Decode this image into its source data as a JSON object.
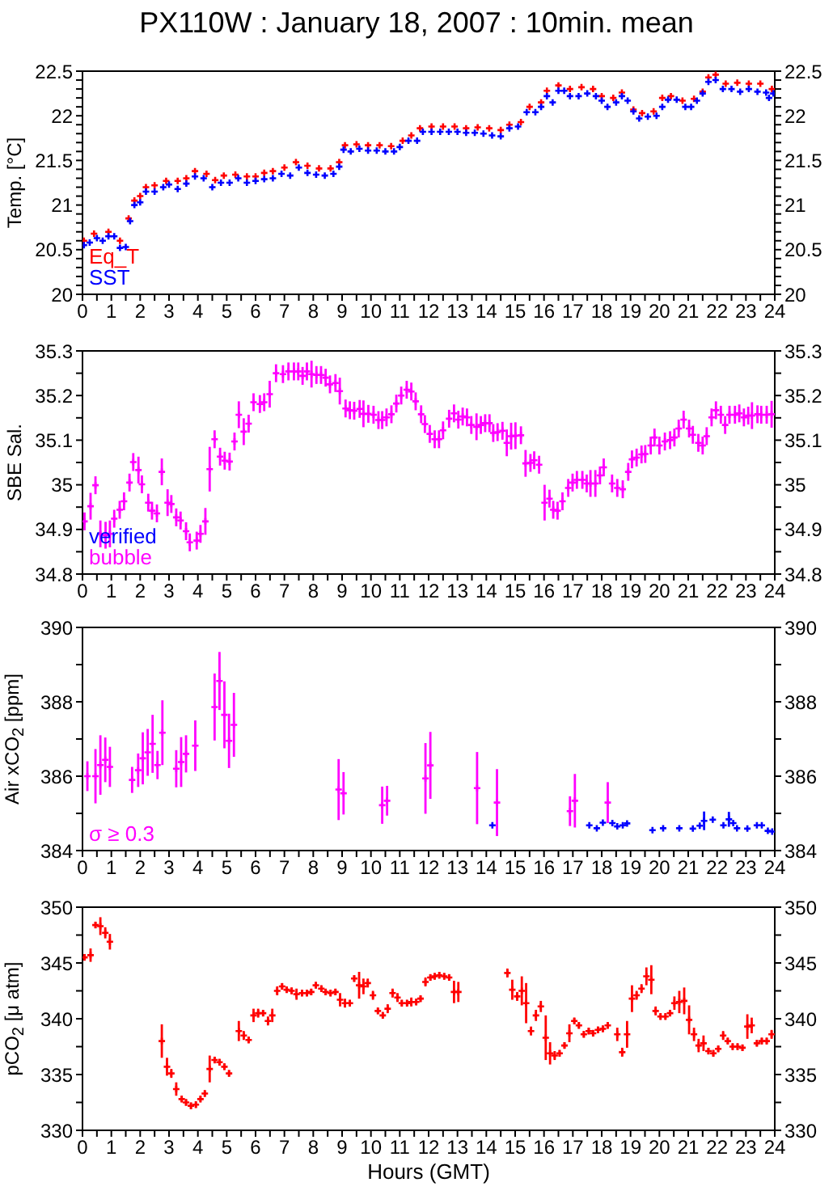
{
  "chart_data": [
    {
      "type": "scatter",
      "title": "PX110W : January 18, 2007 : 10min. mean",
      "ylabel": "Temp. [°C]",
      "marker": "cross",
      "legend": "bottom left",
      "xlim": [
        0,
        24
      ],
      "xticks": [
        0,
        {
          "value": 0.5,
          "label": null
        },
        1,
        {
          "value": 1.5,
          "label": null
        },
        2,
        {
          "value": 2.5,
          "label": null
        },
        3,
        {
          "value": 3.5,
          "label": null
        },
        4,
        {
          "value": 4.5,
          "label": null
        },
        5,
        {
          "value": 5.5,
          "label": null
        },
        6,
        {
          "value": 6.5,
          "label": null
        },
        7,
        {
          "value": 7.5,
          "label": null
        },
        8,
        {
          "value": 8.5,
          "label": null
        },
        9,
        {
          "value": 9.5,
          "label": null
        },
        10,
        {
          "value": 10.5,
          "label": null
        },
        11,
        {
          "value": 11.5,
          "label": null
        },
        12,
        {
          "value": 12.5,
          "label": null
        },
        13,
        {
          "value": 13.5,
          "label": null
        },
        14,
        {
          "value": 14.5,
          "label": null
        },
        15,
        {
          "value": 15.5,
          "label": null
        },
        16,
        {
          "value": 16.5,
          "label": null
        },
        17,
        {
          "value": 17.5,
          "label": null
        },
        18,
        {
          "value": 18.5,
          "label": null
        },
        19,
        {
          "value": 19.5,
          "label": null
        },
        20,
        {
          "value": 20.5,
          "label": null
        },
        21,
        {
          "value": 21.5,
          "label": null
        },
        22,
        {
          "value": 22.5,
          "label": null
        },
        23,
        {
          "value": 23.5,
          "label": null
        },
        24
      ],
      "ylim": [
        20,
        22.5
      ],
      "yticks": [
        20,
        {
          "value": 20.1,
          "label": null
        },
        {
          "value": 20.2,
          "label": null
        },
        {
          "value": 20.3,
          "label": null
        },
        {
          "value": 20.4,
          "label": null
        },
        20.5,
        {
          "value": 20.6,
          "label": null
        },
        {
          "value": 20.7,
          "label": null
        },
        {
          "value": 20.8,
          "label": null
        },
        {
          "value": 20.9,
          "label": null
        },
        21,
        {
          "value": 21.1,
          "label": null
        },
        {
          "value": 21.2,
          "label": null
        },
        {
          "value": 21.3,
          "label": null
        },
        {
          "value": 21.4,
          "label": null
        },
        21.5,
        {
          "value": 21.6,
          "label": null
        },
        {
          "value": 21.7,
          "label": null
        },
        {
          "value": 21.8,
          "label": null
        },
        {
          "value": 21.9,
          "label": null
        },
        22,
        {
          "value": 22.1,
          "label": null
        },
        {
          "value": 22.2,
          "label": null
        },
        {
          "value": 22.3,
          "label": null
        },
        {
          "value": 22.4,
          "label": null
        },
        22.5
      ],
      "y2lim": [
        20,
        22.5
      ],
      "y2ticks": [
        20,
        {
          "value": 20.1,
          "label": null
        },
        {
          "value": 20.2,
          "label": null
        },
        {
          "value": 20.3,
          "label": null
        },
        {
          "value": 20.4,
          "label": null
        },
        20.5,
        {
          "value": 20.6,
          "label": null
        },
        {
          "value": 20.7,
          "label": null
        },
        {
          "value": 20.8,
          "label": null
        },
        {
          "value": 20.9,
          "label": null
        },
        21,
        {
          "value": 21.1,
          "label": null
        },
        {
          "value": 21.2,
          "label": null
        },
        {
          "value": 21.3,
          "label": null
        },
        {
          "value": 21.4,
          "label": null
        },
        21.5,
        {
          "value": 21.6,
          "label": null
        },
        {
          "value": 21.7,
          "label": null
        },
        {
          "value": 21.8,
          "label": null
        },
        {
          "value": 21.9,
          "label": null
        },
        22,
        {
          "value": 22.1,
          "label": null
        },
        {
          "value": 22.2,
          "label": null
        },
        {
          "value": 22.3,
          "label": null
        },
        {
          "value": 22.4,
          "label": null
        },
        22.5
      ],
      "series": [
        {
          "name": "Eq_T",
          "color": "#ff0000",
          "x": [
            0.05,
            0.4,
            0.9,
            1.3,
            1.6,
            1.8,
            2.0,
            2.2,
            2.5,
            2.9,
            3.3,
            3.6,
            3.9,
            4.3,
            4.6,
            4.9,
            5.3,
            5.7,
            6.0,
            6.3,
            6.6,
            7.0,
            7.4,
            7.8,
            8.2,
            8.6,
            8.9,
            9.1,
            9.5,
            9.9,
            10.3,
            10.7,
            11.1,
            11.4,
            11.7,
            12.1,
            12.5,
            12.9,
            13.3,
            13.7,
            14.1,
            14.5,
            14.8,
            15.2,
            15.5,
            15.9,
            16.1,
            16.5,
            16.9,
            17.3,
            17.7,
            18.0,
            18.4,
            18.7,
            19.1,
            19.4,
            19.8,
            20.1,
            20.4,
            20.8,
            21.2,
            21.5,
            21.7,
            21.95,
            22.3,
            22.7,
            23.1,
            23.5,
            23.9
          ],
          "values": [
            20.6,
            20.68,
            20.7,
            20.6,
            20.85,
            21.05,
            21.1,
            21.2,
            21.22,
            21.27,
            21.27,
            21.3,
            21.38,
            21.35,
            21.28,
            21.33,
            21.34,
            21.32,
            21.32,
            21.36,
            21.38,
            21.42,
            21.48,
            21.44,
            21.41,
            21.41,
            21.48,
            21.67,
            21.68,
            21.67,
            21.67,
            21.66,
            21.72,
            21.78,
            21.86,
            21.88,
            21.88,
            21.88,
            21.86,
            21.87,
            21.86,
            21.84,
            21.9,
            21.93,
            22.1,
            22.15,
            22.28,
            22.34,
            22.3,
            22.32,
            22.3,
            22.22,
            22.2,
            22.26,
            22.07,
            22.03,
            22.05,
            22.2,
            22.22,
            22.17,
            22.19,
            22.27,
            22.43,
            22.46,
            22.36,
            22.37,
            22.36,
            22.36,
            22.3
          ]
        },
        {
          "name": "SST",
          "color": "#0000ff",
          "x": [
            0.05,
            0.25,
            0.5,
            0.7,
            0.9,
            1.1,
            1.3,
            1.5,
            1.65,
            1.8,
            2.0,
            2.2,
            2.5,
            2.8,
            3.0,
            3.3,
            3.6,
            3.9,
            4.2,
            4.5,
            4.8,
            5.1,
            5.4,
            5.7,
            6.0,
            6.3,
            6.6,
            6.9,
            7.2,
            7.5,
            7.8,
            8.1,
            8.4,
            8.7,
            8.9,
            9.05,
            9.3,
            9.6,
            9.9,
            10.2,
            10.5,
            10.8,
            11.0,
            11.3,
            11.6,
            11.8,
            12.1,
            12.4,
            12.7,
            13.0,
            13.3,
            13.6,
            13.9,
            14.2,
            14.5,
            14.8,
            15.1,
            15.4,
            15.7,
            15.9,
            16.1,
            16.3,
            16.5,
            16.7,
            16.9,
            17.2,
            17.5,
            17.8,
            18.0,
            18.2,
            18.5,
            18.7,
            18.9,
            19.1,
            19.3,
            19.6,
            19.9,
            20.1,
            20.3,
            20.6,
            20.9,
            21.1,
            21.3,
            21.5,
            21.7,
            21.95,
            22.2,
            22.5,
            22.8,
            23.1,
            23.4,
            23.7,
            23.8,
            23.95
          ],
          "values": [
            20.55,
            20.58,
            20.63,
            20.6,
            20.65,
            20.65,
            20.52,
            20.53,
            20.82,
            21.0,
            21.03,
            21.15,
            21.15,
            21.2,
            21.23,
            21.18,
            21.24,
            21.32,
            21.3,
            21.2,
            21.25,
            21.25,
            21.3,
            21.25,
            21.27,
            21.29,
            21.3,
            21.35,
            21.33,
            21.42,
            21.36,
            21.34,
            21.33,
            21.35,
            21.43,
            21.62,
            21.6,
            21.63,
            21.61,
            21.61,
            21.6,
            21.6,
            21.65,
            21.72,
            21.72,
            21.82,
            21.82,
            21.82,
            21.82,
            21.82,
            21.81,
            21.81,
            21.8,
            21.78,
            21.77,
            21.86,
            21.88,
            22.04,
            22.04,
            22.1,
            22.22,
            22.15,
            22.28,
            22.28,
            22.22,
            22.22,
            22.25,
            22.22,
            22.17,
            22.1,
            22.15,
            22.22,
            22.17,
            22.05,
            21.97,
            21.99,
            22.0,
            22.1,
            22.18,
            22.18,
            22.1,
            22.1,
            22.17,
            22.25,
            22.38,
            22.4,
            22.3,
            22.3,
            22.27,
            22.3,
            22.27,
            22.26,
            22.2,
            22.25
          ]
        }
      ]
    },
    {
      "type": "scatter",
      "ylabel": "SBE Sal.",
      "marker": "cross",
      "legend": "bottom left",
      "xlim": [
        0,
        24
      ],
      "xticks": [
        0,
        {
          "value": 0.5,
          "label": null
        },
        1,
        {
          "value": 1.5,
          "label": null
        },
        2,
        {
          "value": 2.5,
          "label": null
        },
        3,
        {
          "value": 3.5,
          "label": null
        },
        4,
        {
          "value": 4.5,
          "label": null
        },
        5,
        {
          "value": 5.5,
          "label": null
        },
        6,
        {
          "value": 6.5,
          "label": null
        },
        7,
        {
          "value": 7.5,
          "label": null
        },
        8,
        {
          "value": 8.5,
          "label": null
        },
        9,
        {
          "value": 9.5,
          "label": null
        },
        10,
        {
          "value": 10.5,
          "label": null
        },
        11,
        {
          "value": 11.5,
          "label": null
        },
        12,
        {
          "value": 12.5,
          "label": null
        },
        13,
        {
          "value": 13.5,
          "label": null
        },
        14,
        {
          "value": 14.5,
          "label": null
        },
        15,
        {
          "value": 15.5,
          "label": null
        },
        16,
        {
          "value": 16.5,
          "label": null
        },
        17,
        {
          "value": 17.5,
          "label": null
        },
        18,
        {
          "value": 18.5,
          "label": null
        },
        19,
        {
          "value": 19.5,
          "label": null
        },
        20,
        {
          "value": 20.5,
          "label": null
        },
        21,
        {
          "value": 21.5,
          "label": null
        },
        22,
        {
          "value": 22.5,
          "label": null
        },
        23,
        {
          "value": 23.5,
          "label": null
        },
        24
      ],
      "ylim": [
        34.8,
        35.3
      ],
      "yticks": [
        34.8,
        {
          "value": 34.85,
          "label": null
        },
        34.9,
        {
          "value": 34.95,
          "label": null
        },
        35,
        {
          "value": 35.05,
          "label": null
        },
        35.1,
        {
          "value": 35.15,
          "label": null
        },
        35.2,
        {
          "value": 35.25,
          "label": null
        },
        35.3
      ],
      "y2lim": [
        34.8,
        35.3
      ],
      "y2ticks": [
        34.8,
        {
          "value": 34.85,
          "label": null
        },
        34.9,
        {
          "value": 34.95,
          "label": null
        },
        35,
        {
          "value": 35.05,
          "label": null
        },
        35.1,
        {
          "value": 35.15,
          "label": null
        },
        35.2,
        {
          "value": 35.25,
          "label": null
        },
        35.3
      ],
      "series": [
        {
          "name": "verified",
          "color": "#0000ff"
        },
        {
          "name": "bubble",
          "color": "#ff00ff",
          "x": [
            0.07,
            0.28,
            0.45,
            0.62,
            0.8,
            0.95,
            1.1,
            1.29,
            1.44,
            1.63,
            1.76,
            1.94,
            2.06,
            2.28,
            2.41,
            2.58,
            2.75,
            2.95,
            3.08,
            3.25,
            3.4,
            3.59,
            3.72,
            3.96,
            4.09,
            4.26,
            4.41,
            4.58,
            4.77,
            4.93,
            5.1,
            5.27,
            5.42,
            5.59,
            5.76,
            5.93,
            6.15,
            6.3,
            6.49,
            6.71,
            6.95,
            7.14,
            7.33,
            7.48,
            7.63,
            7.78,
            7.94,
            8.11,
            8.27,
            8.43,
            8.58,
            8.77,
            8.92,
            9.12,
            9.27,
            9.42,
            9.61,
            9.74,
            9.91,
            10.09,
            10.26,
            10.39,
            10.54,
            10.71,
            10.88,
            11.05,
            11.24,
            11.4,
            11.55,
            11.74,
            11.87,
            12.04,
            12.21,
            12.36,
            12.5,
            12.71,
            12.88,
            13.03,
            13.18,
            13.33,
            13.48,
            13.66,
            13.81,
            13.96,
            14.11,
            14.24,
            14.39,
            14.56,
            14.71,
            14.86,
            15.01,
            15.2,
            15.36,
            15.53,
            15.66,
            15.83,
            16.02,
            16.19,
            16.32,
            16.47,
            16.64,
            16.84,
            16.99,
            17.14,
            17.33,
            17.48,
            17.61,
            17.78,
            17.94,
            18.07,
            18.36,
            18.54,
            18.73,
            18.92,
            19.05,
            19.21,
            19.38,
            19.51,
            19.7,
            19.83,
            20.0,
            20.19,
            20.37,
            20.52,
            20.67,
            20.84,
            21.03,
            21.16,
            21.35,
            21.5,
            21.64,
            21.81,
            21.96,
            22.13,
            22.28,
            22.43,
            22.62,
            22.77,
            22.93,
            23.08,
            23.21,
            23.4,
            23.53,
            23.72,
            23.89
          ],
          "values": [
            34.918,
            34.952,
            34.999,
            34.89,
            34.887,
            34.89,
            34.924,
            34.944,
            34.963,
            35.005,
            35.051,
            35.033,
            35.001,
            34.96,
            34.942,
            34.936,
            35.029,
            34.96,
            34.957,
            34.927,
            34.92,
            34.896,
            34.871,
            34.875,
            34.89,
            34.918,
            35.035,
            35.102,
            35.063,
            35.054,
            35.052,
            35.097,
            35.157,
            35.119,
            35.137,
            35.185,
            35.181,
            35.185,
            35.203,
            35.25,
            35.248,
            35.254,
            35.254,
            35.254,
            35.244,
            35.254,
            35.248,
            35.246,
            35.246,
            35.24,
            35.225,
            35.228,
            35.21,
            35.171,
            35.167,
            35.166,
            35.17,
            35.159,
            35.159,
            35.157,
            35.145,
            35.145,
            35.151,
            35.158,
            35.182,
            35.2,
            35.213,
            35.209,
            35.187,
            35.158,
            35.136,
            35.114,
            35.102,
            35.102,
            35.122,
            35.148,
            35.16,
            35.146,
            35.153,
            35.151,
            35.134,
            35.13,
            35.134,
            35.138,
            35.138,
            35.116,
            35.118,
            35.121,
            35.094,
            35.109,
            35.11,
            35.111,
            35.048,
            35.049,
            35.055,
            35.045,
            34.96,
            34.969,
            34.944,
            34.942,
            34.963,
            34.993,
            35.005,
            35.011,
            35.011,
            35.003,
            35.003,
            35.003,
            35.021,
            35.039,
            35.003,
            34.993,
            34.99,
            35.029,
            35.057,
            35.061,
            35.068,
            35.069,
            35.088,
            35.106,
            35.088,
            35.097,
            35.1,
            35.106,
            35.126,
            35.146,
            35.126,
            35.112,
            35.094,
            35.088,
            35.109,
            35.151,
            35.167,
            35.157,
            35.134,
            35.157,
            35.157,
            35.16,
            35.151,
            35.155,
            35.155,
            35.158,
            35.157,
            35.157,
            35.158
          ],
          "errors": [
            0.02,
            0.03,
            0.02,
            0.03,
            0.03,
            0.03,
            0.02,
            0.02,
            0.02,
            0.02,
            0.02,
            0.03,
            0.02,
            0.02,
            0.02,
            0.02,
            0.03,
            0.03,
            0.02,
            0.02,
            0.02,
            0.02,
            0.02,
            0.02,
            0.02,
            0.03,
            0.05,
            0.02,
            0.02,
            0.02,
            0.02,
            0.02,
            0.03,
            0.03,
            0.02,
            0.02,
            0.02,
            0.02,
            0.03,
            0.02,
            0.02,
            0.02,
            0.02,
            0.02,
            0.02,
            0.02,
            0.03,
            0.02,
            0.02,
            0.02,
            0.02,
            0.02,
            0.03,
            0.02,
            0.02,
            0.02,
            0.02,
            0.03,
            0.02,
            0.02,
            0.02,
            0.02,
            0.02,
            0.02,
            0.02,
            0.02,
            0.02,
            0.02,
            0.02,
            0.02,
            0.02,
            0.02,
            0.02,
            0.02,
            0.02,
            0.02,
            0.02,
            0.02,
            0.02,
            0.02,
            0.02,
            0.03,
            0.02,
            0.02,
            0.02,
            0.02,
            0.02,
            0.02,
            0.03,
            0.03,
            0.03,
            0.02,
            0.03,
            0.02,
            0.02,
            0.02,
            0.04,
            0.02,
            0.02,
            0.02,
            0.02,
            0.02,
            0.02,
            0.02,
            0.02,
            0.02,
            0.03,
            0.03,
            0.02,
            0.02,
            0.02,
            0.02,
            0.02,
            0.02,
            0.02,
            0.02,
            0.02,
            0.02,
            0.02,
            0.02,
            0.02,
            0.02,
            0.02,
            0.02,
            0.02,
            0.02,
            0.02,
            0.02,
            0.02,
            0.02,
            0.02,
            0.02,
            0.02,
            0.02,
            0.02,
            0.02,
            0.02,
            0.02,
            0.02,
            0.02,
            0.03,
            0.02,
            0.02,
            0.02,
            0.03
          ]
        }
      ]
    },
    {
      "type": "scatter",
      "ylabel": "Air xCO$_{2}$ [ppm]",
      "marker": "cross",
      "legend": "bottom left",
      "xlim": [
        0,
        24
      ],
      "xticks": [
        0,
        {
          "value": 0.5,
          "label": null
        },
        1,
        {
          "value": 1.5,
          "label": null
        },
        2,
        {
          "value": 2.5,
          "label": null
        },
        3,
        {
          "value": 3.5,
          "label": null
        },
        4,
        {
          "value": 4.5,
          "label": null
        },
        5,
        {
          "value": 5.5,
          "label": null
        },
        6,
        {
          "value": 6.5,
          "label": null
        },
        7,
        {
          "value": 7.5,
          "label": null
        },
        8,
        {
          "value": 8.5,
          "label": null
        },
        9,
        {
          "value": 9.5,
          "label": null
        },
        10,
        {
          "value": 10.5,
          "label": null
        },
        11,
        {
          "value": 11.5,
          "label": null
        },
        12,
        {
          "value": 12.5,
          "label": null
        },
        13,
        {
          "value": 13.5,
          "label": null
        },
        14,
        {
          "value": 14.5,
          "label": null
        },
        15,
        {
          "value": 15.5,
          "label": null
        },
        16,
        {
          "value": 16.5,
          "label": null
        },
        17,
        {
          "value": 17.5,
          "label": null
        },
        18,
        {
          "value": 18.5,
          "label": null
        },
        19,
        {
          "value": 19.5,
          "label": null
        },
        20,
        {
          "value": 20.5,
          "label": null
        },
        21,
        {
          "value": 21.5,
          "label": null
        },
        22,
        {
          "value": 22.5,
          "label": null
        },
        23,
        {
          "value": 23.5,
          "label": null
        },
        24
      ],
      "ylim": [
        384,
        390
      ],
      "yticks": [
        384,
        {
          "value": 385,
          "label": null
        },
        386,
        {
          "value": 387,
          "label": null
        },
        388,
        {
          "value": 389,
          "label": null
        },
        390
      ],
      "y2lim": [
        384,
        390
      ],
      "y2ticks": [
        384,
        {
          "value": 385,
          "label": null
        },
        386,
        {
          "value": 387,
          "label": null
        },
        388,
        {
          "value": 389,
          "label": null
        },
        390
      ],
      "series": [
        {
          "name": "σ ≥ 0.3",
          "color": "#ff00ff",
          "x": [
            0.17,
            0.45,
            0.62,
            0.79,
            0.95,
            1.72,
            1.93,
            2.09,
            2.26,
            2.43,
            2.6,
            2.77,
            3.25,
            3.42,
            3.59,
            3.91,
            4.58,
            4.75,
            4.92,
            5.08,
            5.25,
            8.88,
            9.05,
            10.39,
            10.56,
            11.89,
            12.06,
            13.68,
            14.37,
            16.9,
            17.07,
            18.21
          ],
          "values": [
            386.0,
            386.0,
            386.3,
            386.44,
            386.25,
            385.9,
            386.16,
            386.48,
            386.64,
            386.87,
            386.3,
            387.17,
            386.2,
            386.38,
            386.6,
            386.82,
            387.86,
            388.56,
            387.65,
            386.95,
            387.38,
            385.64,
            385.54,
            385.22,
            385.34,
            385.94,
            386.29,
            385.68,
            385.29,
            385.06,
            385.34,
            385.29
          ],
          "errors": [
            0.4,
            0.73,
            0.8,
            0.6,
            0.54,
            0.35,
            0.45,
            0.7,
            0.63,
            0.78,
            0.38,
            0.87,
            0.5,
            0.67,
            0.5,
            0.68,
            0.9,
            0.78,
            0.9,
            0.73,
            0.86,
            0.82,
            0.57,
            0.5,
            0.4,
            0.95,
            0.9,
            0.97,
            0.9,
            0.4,
            0.72,
            0.55
          ]
        },
        {
          "color": "#0000ff",
          "x": [
            14.21,
            17.57,
            17.83,
            18.04,
            18.37,
            18.54,
            18.73,
            18.88,
            19.76,
            20.13,
            20.69,
            21.16,
            21.4,
            21.55,
            21.85,
            22.22,
            22.41,
            22.56,
            22.69,
            23.05,
            23.38,
            23.55,
            23.76,
            23.91
          ],
          "values": [
            384.68,
            384.68,
            384.6,
            384.75,
            384.74,
            384.65,
            384.68,
            384.73,
            384.55,
            384.6,
            384.6,
            384.59,
            384.67,
            384.8,
            384.83,
            384.68,
            384.84,
            384.74,
            384.6,
            384.59,
            384.68,
            384.68,
            384.53,
            384.51
          ],
          "errors": [
            null,
            null,
            null,
            null,
            null,
            null,
            null,
            null,
            null,
            null,
            null,
            null,
            null,
            0.25,
            null,
            null,
            0.2,
            null,
            null,
            null,
            null,
            null,
            null,
            null
          ]
        }
      ]
    },
    {
      "type": "scatter",
      "ylabel": "pCO$_{2}$ [μ atm]",
      "xlabel": "Hours (GMT)",
      "marker": "cross",
      "xlim": [
        0,
        24
      ],
      "xticks": [
        0,
        {
          "value": 0.5,
          "label": null
        },
        1,
        {
          "value": 1.5,
          "label": null
        },
        2,
        {
          "value": 2.5,
          "label": null
        },
        3,
        {
          "value": 3.5,
          "label": null
        },
        4,
        {
          "value": 4.5,
          "label": null
        },
        5,
        {
          "value": 5.5,
          "label": null
        },
        6,
        {
          "value": 6.5,
          "label": null
        },
        7,
        {
          "value": 7.5,
          "label": null
        },
        8,
        {
          "value": 8.5,
          "label": null
        },
        9,
        {
          "value": 9.5,
          "label": null
        },
        10,
        {
          "value": 10.5,
          "label": null
        },
        11,
        {
          "value": 11.5,
          "label": null
        },
        12,
        {
          "value": 12.5,
          "label": null
        },
        13,
        {
          "value": 13.5,
          "label": null
        },
        14,
        {
          "value": 14.5,
          "label": null
        },
        15,
        {
          "value": 15.5,
          "label": null
        },
        16,
        {
          "value": 16.5,
          "label": null
        },
        17,
        {
          "value": 17.5,
          "label": null
        },
        18,
        {
          "value": 18.5,
          "label": null
        },
        19,
        {
          "value": 19.5,
          "label": null
        },
        20,
        {
          "value": 20.5,
          "label": null
        },
        21,
        {
          "value": 21.5,
          "label": null
        },
        22,
        {
          "value": 22.5,
          "label": null
        },
        23,
        {
          "value": 23.5,
          "label": null
        },
        24
      ],
      "ylim": [
        330,
        350
      ],
      "yticks": [
        330,
        {
          "value": 332.5,
          "label": null
        },
        335,
        {
          "value": 337.5,
          "label": null
        },
        340,
        {
          "value": 342.5,
          "label": null
        },
        345,
        {
          "value": 347.5,
          "label": null
        },
        350
      ],
      "y2lim": [
        330,
        350
      ],
      "y2ticks": [
        330,
        {
          "value": 332.5,
          "label": null
        },
        335,
        {
          "value": 337.5,
          "label": null
        },
        340,
        {
          "value": 342.5,
          "label": null
        },
        345,
        {
          "value": 347.5,
          "label": null
        },
        350
      ],
      "series": [
        {
          "color": "#ff0000",
          "x": [
            0.07,
            0.28,
            0.45,
            0.62,
            0.79,
            0.95,
            2.75,
            2.93,
            3.08,
            3.25,
            3.44,
            3.59,
            3.76,
            3.93,
            4.09,
            4.24,
            4.41,
            4.58,
            4.75,
            4.92,
            5.08,
            5.42,
            5.59,
            5.76,
            5.93,
            6.09,
            6.26,
            6.43,
            6.58,
            6.75,
            6.92,
            7.08,
            7.25,
            7.42,
            7.61,
            7.78,
            7.93,
            8.09,
            8.28,
            8.43,
            8.6,
            8.77,
            8.93,
            9.1,
            9.27,
            9.42,
            9.59,
            9.74,
            9.89,
            10.07,
            10.24,
            10.41,
            10.58,
            10.75,
            10.92,
            11.07,
            11.25,
            11.4,
            11.57,
            11.72,
            11.89,
            12.06,
            12.21,
            12.37,
            12.54,
            12.71,
            12.88,
            13.03,
            14.73,
            14.9,
            15.07,
            15.23,
            15.38,
            15.55,
            15.72,
            15.89,
            16.06,
            16.21,
            16.37,
            16.54,
            16.71,
            16.88,
            17.05,
            17.21,
            17.38,
            17.55,
            17.7,
            17.87,
            18.04,
            18.21,
            18.54,
            18.71,
            18.88,
            19.05,
            19.21,
            19.38,
            19.55,
            19.72,
            19.87,
            20.04,
            20.21,
            20.37,
            20.52,
            20.69,
            20.86,
            21.03,
            21.2,
            21.36,
            21.53,
            21.7,
            21.87,
            22.04,
            22.21,
            22.37,
            22.54,
            22.71,
            22.88,
            23.05,
            23.2,
            23.38,
            23.55,
            23.72,
            23.89
          ],
          "values": [
            345.5,
            345.7,
            348.4,
            348.3,
            347.7,
            346.9,
            338.0,
            335.7,
            335.1,
            333.7,
            332.8,
            332.5,
            332.2,
            332.3,
            332.8,
            333.3,
            335.5,
            336.3,
            336.1,
            335.7,
            335.1,
            338.9,
            338.5,
            338.1,
            340.3,
            340.5,
            340.5,
            339.8,
            340.3,
            342.5,
            342.9,
            342.6,
            342.5,
            342.2,
            342.3,
            342.3,
            342.4,
            343.0,
            342.7,
            342.4,
            342.3,
            342.4,
            341.7,
            341.4,
            341.4,
            343.6,
            343.0,
            342.9,
            343.2,
            342.1,
            340.7,
            340.3,
            340.9,
            342.3,
            341.9,
            341.4,
            341.4,
            341.5,
            341.5,
            341.8,
            343.3,
            343.7,
            343.8,
            343.9,
            343.8,
            343.7,
            342.4,
            342.4,
            344.1,
            342.6,
            342.0,
            342.5,
            341.4,
            338.9,
            340.3,
            341.1,
            338.3,
            336.9,
            336.7,
            336.9,
            337.6,
            338.7,
            339.8,
            339.4,
            338.6,
            338.9,
            338.7,
            339.0,
            339.1,
            339.4,
            338.6,
            337.0,
            338.6,
            341.8,
            342.1,
            342.7,
            343.8,
            343.5,
            340.7,
            340.2,
            340.2,
            340.5,
            341.4,
            341.5,
            341.6,
            339.9,
            338.6,
            337.6,
            337.8,
            337.1,
            336.9,
            337.3,
            338.5,
            338.0,
            337.5,
            337.5,
            337.4,
            339.3,
            339.4,
            337.8,
            338.0,
            338.0,
            338.6
          ],
          "errors": [
            0.3,
            0.6,
            0.3,
            0.8,
            0.5,
            0.7,
            1.5,
            0.8,
            0.4,
            0.6,
            0.3,
            0.3,
            0.3,
            0.3,
            0.3,
            0.3,
            1.2,
            0.3,
            0.3,
            0.3,
            0.3,
            0.9,
            0.4,
            0.3,
            0.6,
            0.4,
            0.3,
            0.4,
            0.6,
            0.4,
            0.3,
            0.3,
            0.3,
            0.5,
            0.3,
            0.3,
            0.3,
            0.3,
            0.3,
            0.3,
            0.3,
            0.3,
            0.6,
            0.4,
            0.3,
            0.3,
            1.2,
            0.7,
            0.4,
            0.4,
            0.3,
            0.3,
            0.4,
            0.4,
            0.4,
            0.3,
            0.3,
            0.4,
            0.3,
            0.3,
            0.4,
            0.3,
            0.3,
            0.3,
            0.3,
            0.3,
            1.0,
            0.9,
            0.4,
            0.9,
            0.4,
            1.3,
            1.8,
            0.4,
            0.5,
            0.5,
            2.0,
            1.0,
            0.4,
            0.3,
            0.3,
            0.8,
            0.3,
            0.3,
            0.3,
            0.3,
            0.3,
            0.3,
            0.3,
            0.3,
            0.6,
            0.4,
            1.2,
            1.2,
            0.4,
            0.4,
            0.8,
            1.3,
            0.4,
            0.3,
            0.3,
            0.3,
            0.6,
            1.0,
            1.2,
            1.3,
            0.6,
            0.6,
            0.7,
            0.3,
            0.3,
            0.3,
            0.4,
            0.3,
            0.3,
            0.3,
            0.3,
            1.1,
            0.7,
            0.3,
            0.3,
            0.3,
            0.4
          ]
        }
      ]
    }
  ]
}
